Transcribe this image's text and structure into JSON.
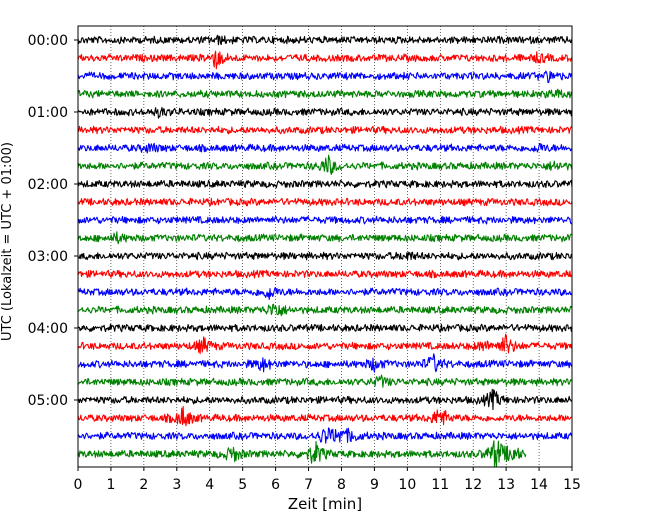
{
  "chart_data": {
    "type": "line",
    "title": "",
    "xlabel": "Zeit  [min]",
    "ylabel": "UTC (Lokalzeit = UTC + 01:00)",
    "xlim": [
      0,
      15
    ],
    "x_ticks": [
      "0",
      "1",
      "2",
      "3",
      "4",
      "5",
      "6",
      "7",
      "8",
      "9",
      "10",
      "11",
      "12",
      "13",
      "14",
      "15"
    ],
    "y_tick_labels": [
      "00:00",
      "01:00",
      "02:00",
      "03:00",
      "04:00",
      "05:00"
    ],
    "grid": "vertical dotted",
    "colors": {
      "black": "#000000",
      "red": "#ff0000",
      "blue": "#0000ff",
      "green": "#008000"
    },
    "traces": [
      {
        "start": "00:00",
        "color": "black",
        "events": [
          {
            "t": 4.3,
            "amp": 0.25
          }
        ]
      },
      {
        "start": "00:15",
        "color": "red",
        "events": [
          {
            "t": 4.2,
            "amp": 0.9
          },
          {
            "t": 14.0,
            "amp": 0.35
          }
        ]
      },
      {
        "start": "00:30",
        "color": "blue",
        "events": [
          {
            "t": 14.3,
            "amp": 0.4
          }
        ]
      },
      {
        "start": "00:45",
        "color": "green",
        "events": [
          {
            "t": 14.5,
            "amp": 0.3
          }
        ]
      },
      {
        "start": "01:00",
        "color": "black",
        "events": [
          {
            "t": 2.5,
            "amp": 0.35
          }
        ]
      },
      {
        "start": "01:15",
        "color": "red",
        "events": []
      },
      {
        "start": "01:30",
        "color": "blue",
        "events": [
          {
            "t": 2.2,
            "amp": 0.35
          },
          {
            "t": 14.0,
            "amp": 0.3
          }
        ]
      },
      {
        "start": "01:45",
        "color": "green",
        "events": [
          {
            "t": 7.6,
            "amp": 0.9
          },
          {
            "t": 14.5,
            "amp": 0.35
          }
        ]
      },
      {
        "start": "02:00",
        "color": "black",
        "events": []
      },
      {
        "start": "02:15",
        "color": "red",
        "events": []
      },
      {
        "start": "02:30",
        "color": "blue",
        "events": []
      },
      {
        "start": "02:45",
        "color": "green",
        "events": [
          {
            "t": 1.2,
            "amp": 0.35
          }
        ]
      },
      {
        "start": "03:00",
        "color": "black",
        "events": [
          {
            "t": 10.0,
            "amp": 0.3
          }
        ]
      },
      {
        "start": "03:15",
        "color": "red",
        "events": []
      },
      {
        "start": "03:30",
        "color": "blue",
        "events": [
          {
            "t": 5.8,
            "amp": 0.6
          }
        ]
      },
      {
        "start": "03:45",
        "color": "green",
        "events": [
          {
            "t": 6.0,
            "amp": 0.8
          }
        ]
      },
      {
        "start": "04:00",
        "color": "black",
        "events": []
      },
      {
        "start": "04:15",
        "color": "red",
        "events": [
          {
            "t": 3.8,
            "amp": 0.7
          },
          {
            "t": 12.3,
            "amp": 0.4
          },
          {
            "t": 13.0,
            "amp": 1.0
          }
        ]
      },
      {
        "start": "04:30",
        "color": "blue",
        "events": [
          {
            "t": 5.6,
            "amp": 0.6
          },
          {
            "t": 9.0,
            "amp": 0.55
          },
          {
            "t": 10.8,
            "amp": 0.8
          }
        ]
      },
      {
        "start": "04:45",
        "color": "green",
        "events": [
          {
            "t": 9.2,
            "amp": 0.45
          }
        ]
      },
      {
        "start": "05:00",
        "color": "black",
        "events": [
          {
            "t": 12.6,
            "amp": 0.85
          }
        ]
      },
      {
        "start": "05:15",
        "color": "red",
        "events": [
          {
            "t": 3.2,
            "amp": 1.0
          },
          {
            "t": 11.0,
            "amp": 1.0
          }
        ]
      },
      {
        "start": "05:30",
        "color": "blue",
        "events": [
          {
            "t": 7.5,
            "amp": 0.7
          },
          {
            "t": 7.9,
            "amp": 0.65
          },
          {
            "t": 8.3,
            "amp": 0.5
          }
        ]
      },
      {
        "start": "05:45",
        "color": "green",
        "events": [
          {
            "t": 4.7,
            "amp": 0.7
          },
          {
            "t": 7.2,
            "amp": 1.1
          },
          {
            "t": 12.7,
            "amp": 1.5
          },
          {
            "t": 13.2,
            "amp": 0.7
          }
        ]
      }
    ]
  }
}
